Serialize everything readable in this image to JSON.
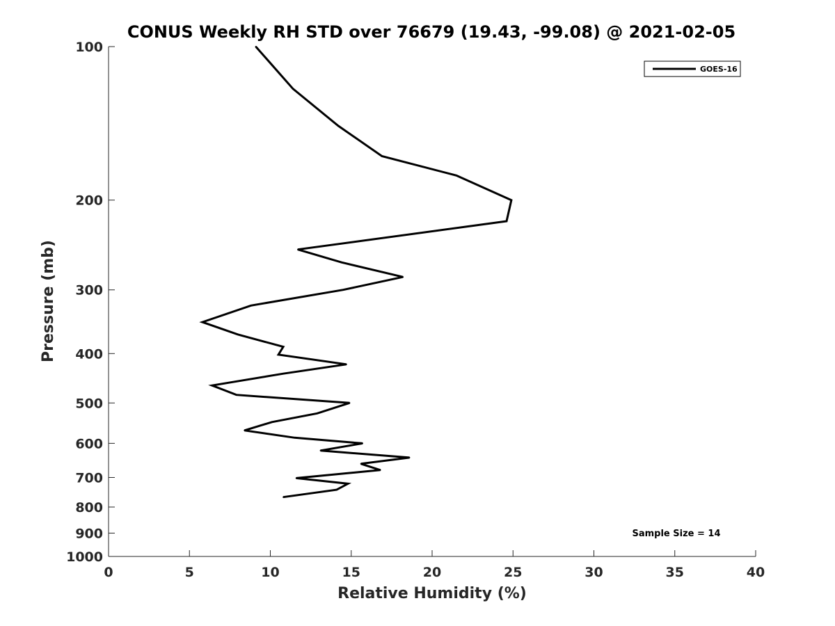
{
  "chart_data": {
    "type": "line",
    "title": "CONUS Weekly RH STD over 76679 (19.43, -99.08) @ 2021-02-05",
    "xlabel": "Relative Humidity (%)",
    "ylabel": "Pressure (mb)",
    "xlim": [
      0,
      40
    ],
    "ylim": [
      100,
      1000
    ],
    "y_scale": "log",
    "y_reversed": true,
    "grid": false,
    "x_ticks": [
      0,
      5,
      10,
      15,
      20,
      25,
      30,
      35,
      40
    ],
    "y_ticks": [
      100,
      200,
      300,
      400,
      500,
      600,
      700,
      800,
      900,
      1000
    ],
    "legend_position": "top-right",
    "series": [
      {
        "name": "GOES-16",
        "color": "#000000",
        "points": [
          {
            "x": 9.1,
            "y": 100
          },
          {
            "x": 11.4,
            "y": 121
          },
          {
            "x": 14.2,
            "y": 143
          },
          {
            "x": 16.9,
            "y": 164
          },
          {
            "x": 21.5,
            "y": 179
          },
          {
            "x": 24.9,
            "y": 200
          },
          {
            "x": 24.6,
            "y": 220
          },
          {
            "x": 11.7,
            "y": 250
          },
          {
            "x": 14.4,
            "y": 265
          },
          {
            "x": 18.2,
            "y": 283
          },
          {
            "x": 14.5,
            "y": 300
          },
          {
            "x": 8.8,
            "y": 322
          },
          {
            "x": 5.8,
            "y": 347
          },
          {
            "x": 8.0,
            "y": 367
          },
          {
            "x": 10.8,
            "y": 388
          },
          {
            "x": 10.5,
            "y": 402
          },
          {
            "x": 14.7,
            "y": 420
          },
          {
            "x": 10.8,
            "y": 438
          },
          {
            "x": 6.4,
            "y": 462
          },
          {
            "x": 7.9,
            "y": 482
          },
          {
            "x": 14.9,
            "y": 500
          },
          {
            "x": 12.9,
            "y": 524
          },
          {
            "x": 10.1,
            "y": 545
          },
          {
            "x": 8.4,
            "y": 566
          },
          {
            "x": 11.5,
            "y": 585
          },
          {
            "x": 15.7,
            "y": 600
          },
          {
            "x": 13.1,
            "y": 620
          },
          {
            "x": 18.6,
            "y": 640
          },
          {
            "x": 15.6,
            "y": 658
          },
          {
            "x": 16.8,
            "y": 677
          },
          {
            "x": 11.6,
            "y": 702
          },
          {
            "x": 14.8,
            "y": 720
          },
          {
            "x": 14.1,
            "y": 740
          },
          {
            "x": 10.8,
            "y": 765
          }
        ]
      }
    ],
    "annotations": [
      {
        "text": "Sample Size = 14"
      }
    ]
  }
}
